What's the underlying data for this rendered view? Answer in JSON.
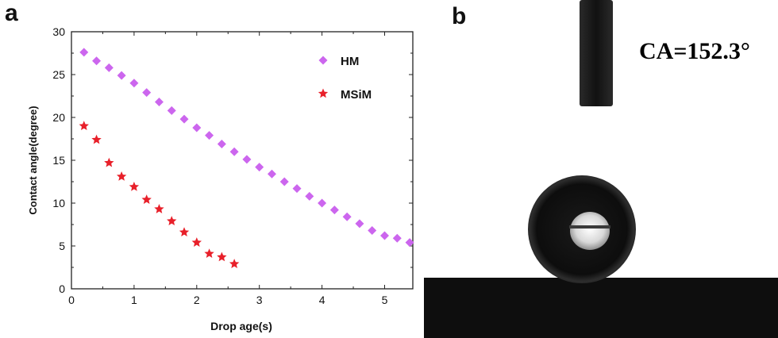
{
  "panels": {
    "a": "a",
    "b": "b"
  },
  "photo": {
    "caption": "CA=152.3°"
  },
  "chart_data": {
    "type": "scatter",
    "xlabel": "Drop age(s)",
    "ylabel": "Contact angle(degree)",
    "xlim": [
      0,
      5.45
    ],
    "ylim": [
      0,
      30
    ],
    "xticks": [
      0,
      1,
      2,
      3,
      4,
      5
    ],
    "yticks": [
      0,
      5,
      10,
      15,
      20,
      25,
      30
    ],
    "grid": false,
    "legend": "top-right",
    "series": [
      {
        "name": "HM",
        "marker": "diamond",
        "color": "#cc66ee",
        "x": [
          0.2,
          0.4,
          0.6,
          0.8,
          1.0,
          1.2,
          1.4,
          1.6,
          1.8,
          2.0,
          2.2,
          2.4,
          2.6,
          2.8,
          3.0,
          3.2,
          3.4,
          3.6,
          3.8,
          4.0,
          4.2,
          4.4,
          4.6,
          4.8,
          5.0,
          5.2,
          5.4
        ],
        "y": [
          27.6,
          26.6,
          25.8,
          24.9,
          24.0,
          22.9,
          21.8,
          20.8,
          19.8,
          18.8,
          17.9,
          16.9,
          16.0,
          15.1,
          14.2,
          13.4,
          12.5,
          11.7,
          10.8,
          10.0,
          9.2,
          8.4,
          7.6,
          6.8,
          6.2,
          5.9,
          5.4
        ]
      },
      {
        "name": "MSiM",
        "marker": "star",
        "color": "#e8202a",
        "x": [
          0.2,
          0.4,
          0.6,
          0.8,
          1.0,
          1.2,
          1.4,
          1.6,
          1.8,
          2.0,
          2.2,
          2.4,
          2.6
        ],
        "y": [
          19.0,
          17.4,
          14.7,
          13.1,
          11.9,
          10.4,
          9.3,
          7.9,
          6.6,
          5.4,
          4.1,
          3.7,
          2.9
        ]
      }
    ]
  }
}
